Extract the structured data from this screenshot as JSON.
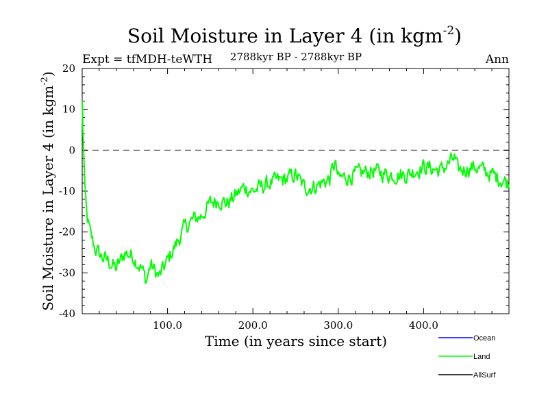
{
  "chart_data": {
    "type": "line",
    "title_main": "Soil Moisture in Layer 4 (in kgm",
    "title_sup": "-2",
    "title_close": ")",
    "subtitle_left": "Expt = tfMDH-teWTH",
    "subtitle_center": "2788kyr BP - 2788kyr BP",
    "subtitle_right": "Ann",
    "xlabel": "Time (in years since start)",
    "ylabel_main": "Soil Moisture in Layer 4 (in kgm",
    "ylabel_sup": "-2",
    "ylabel_close": ")",
    "xlim": [
      0,
      500
    ],
    "ylim": [
      -40,
      20
    ],
    "x_ticks": [
      100,
      200,
      300,
      400
    ],
    "x_tick_labels": [
      "100.0",
      "200.0",
      "300.0",
      "400.0"
    ],
    "y_ticks": [
      -40,
      -30,
      -20,
      -10,
      0,
      10,
      20
    ],
    "y_tick_labels": [
      "-40",
      "-30",
      "-20",
      "-10",
      "0",
      "10",
      "20"
    ],
    "reference_line": 0,
    "series": [
      {
        "name": "Land",
        "color": "#00ff00",
        "keypoints": [
          [
            0,
            12
          ],
          [
            1,
            4
          ],
          [
            3,
            -8
          ],
          [
            6,
            -17
          ],
          [
            10,
            -21
          ],
          [
            15,
            -24
          ],
          [
            22,
            -26
          ],
          [
            30,
            -27
          ],
          [
            40,
            -29
          ],
          [
            50,
            -25
          ],
          [
            60,
            -26
          ],
          [
            70,
            -29
          ],
          [
            75,
            -32
          ],
          [
            80,
            -28
          ],
          [
            90,
            -31
          ],
          [
            95,
            -29
          ],
          [
            100,
            -27
          ],
          [
            110,
            -23
          ],
          [
            120,
            -19
          ],
          [
            130,
            -17
          ],
          [
            140,
            -16
          ],
          [
            150,
            -13
          ],
          [
            160,
            -12
          ],
          [
            170,
            -13
          ],
          [
            180,
            -11
          ],
          [
            190,
            -9
          ],
          [
            200,
            -10
          ],
          [
            220,
            -8
          ],
          [
            240,
            -7
          ],
          [
            250,
            -6
          ],
          [
            260,
            -9
          ],
          [
            270,
            -9
          ],
          [
            280,
            -8
          ],
          [
            290,
            -7
          ],
          [
            296,
            -3
          ],
          [
            300,
            -7
          ],
          [
            320,
            -6
          ],
          [
            340,
            -5
          ],
          [
            360,
            -6
          ],
          [
            380,
            -6
          ],
          [
            400,
            -4
          ],
          [
            420,
            -5
          ],
          [
            436,
            -2
          ],
          [
            440,
            -5
          ],
          [
            460,
            -4
          ],
          [
            480,
            -6
          ],
          [
            500,
            -8
          ]
        ]
      }
    ],
    "legend": [
      {
        "label": "Ocean",
        "color": "#0000ff"
      },
      {
        "label": "Land",
        "color": "#00ff00"
      },
      {
        "label": "AllSurf",
        "color": "#000000"
      }
    ]
  }
}
